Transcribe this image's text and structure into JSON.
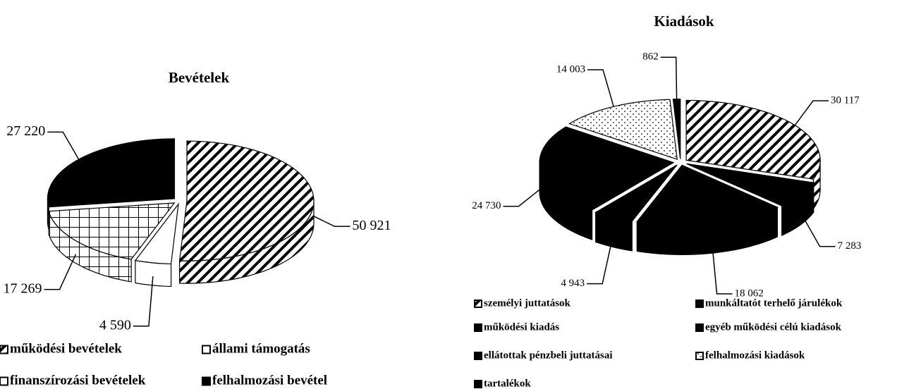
{
  "chart_data": [
    {
      "type": "pie",
      "title": "Bevételek",
      "categories": [
        "működési bevételek",
        "állami támogatás",
        "finanszírozási bevételek",
        "felhalmozási bevétel"
      ],
      "values": [
        50921,
        4590,
        17269,
        27220
      ],
      "value_labels": [
        "50 921",
        "4 590",
        "17 269",
        "27 220"
      ],
      "colors": [
        "stripes",
        "white",
        "grid",
        "black"
      ]
    },
    {
      "type": "pie",
      "title": "Kiadások",
      "categories": [
        "személyi juttatások",
        "munkáltatót terhelő járulékok",
        "működési kiadás",
        "egyéb működési célú kiadások",
        "ellátottak pénzbeli juttatásai",
        "felhalmozási kiadások",
        "tartalékok"
      ],
      "values": [
        30117,
        7283,
        18062,
        4943,
        24730,
        14003,
        862
      ],
      "value_labels": [
        "30 117",
        "7 283",
        "18 062",
        "4 943",
        "24 730",
        "14 003",
        "862"
      ],
      "colors": [
        "stripes",
        "black",
        "black",
        "black",
        "black",
        "dots",
        "black"
      ]
    }
  ]
}
